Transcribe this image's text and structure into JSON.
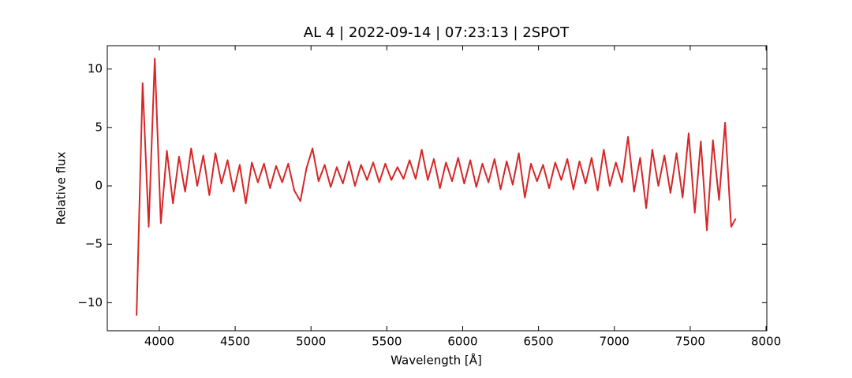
{
  "chart_data": {
    "type": "line",
    "title": "AL 4 | 2022-09-14 | 07:23:13 | 2SPOT",
    "x_label": "Wavelength [Å]",
    "y_label": "Relative flux",
    "xlim": [
      3657,
      8005
    ],
    "ylim": [
      -12.4,
      12.0
    ],
    "xticks": [
      4000,
      4500,
      5000,
      5500,
      6000,
      6500,
      7000,
      7500,
      8000
    ],
    "yticks": [
      {
        "value": -10,
        "label": "−10"
      },
      {
        "value": -5,
        "label": "−5"
      },
      0,
      5,
      10
    ],
    "grid": false,
    "x": [
      3850,
      3890,
      3930,
      3970,
      4010,
      4050,
      4090,
      4130,
      4170,
      4210,
      4250,
      4290,
      4330,
      4370,
      4410,
      4450,
      4490,
      4530,
      4570,
      4610,
      4650,
      4690,
      4730,
      4770,
      4810,
      4850,
      4890,
      4930,
      4970,
      5010,
      5050,
      5090,
      5130,
      5170,
      5210,
      5250,
      5290,
      5330,
      5370,
      5410,
      5450,
      5490,
      5530,
      5570,
      5610,
      5650,
      5690,
      5730,
      5770,
      5810,
      5850,
      5890,
      5930,
      5970,
      6010,
      6050,
      6090,
      6130,
      6170,
      6210,
      6250,
      6290,
      6330,
      6370,
      6410,
      6450,
      6490,
      6530,
      6570,
      6610,
      6650,
      6690,
      6730,
      6770,
      6810,
      6850,
      6890,
      6930,
      6970,
      7010,
      7050,
      7090,
      7130,
      7170,
      7210,
      7250,
      7290,
      7330,
      7370,
      7410,
      7450,
      7490,
      7530,
      7570,
      7610,
      7650,
      7690,
      7730,
      7770,
      7800
    ],
    "series": [
      {
        "color": "#d62728",
        "values": [
          -11.1,
          8.8,
          -3.5,
          10.9,
          -3.2,
          3.0,
          -1.5,
          2.5,
          -0.5,
          3.2,
          0.0,
          2.6,
          -0.8,
          2.8,
          0.2,
          2.2,
          -0.5,
          1.8,
          -1.5,
          2.0,
          0.3,
          1.9,
          -0.2,
          1.7,
          0.3,
          1.9,
          -0.4,
          -1.3,
          1.5,
          3.2,
          0.4,
          1.8,
          -0.1,
          1.6,
          0.2,
          2.1,
          0.0,
          1.8,
          0.5,
          2.0,
          0.3,
          1.9,
          0.5,
          1.6,
          0.6,
          2.2,
          0.6,
          3.1,
          0.5,
          2.3,
          -0.2,
          2.0,
          0.4,
          2.4,
          0.2,
          2.2,
          -0.1,
          1.9,
          0.3,
          2.3,
          -0.3,
          2.1,
          0.1,
          2.8,
          -1.0,
          1.9,
          0.4,
          1.8,
          -0.2,
          2.0,
          0.5,
          2.3,
          -0.3,
          2.1,
          0.2,
          2.4,
          -0.4,
          3.1,
          0.0,
          2.0,
          0.3,
          4.2,
          -0.5,
          2.4,
          -1.9,
          3.1,
          0.0,
          2.6,
          -0.6,
          2.8,
          -1.0,
          4.5,
          -2.3,
          3.8,
          -3.8,
          3.9,
          -1.2,
          5.4,
          -3.5,
          -2.8
        ]
      }
    ]
  }
}
